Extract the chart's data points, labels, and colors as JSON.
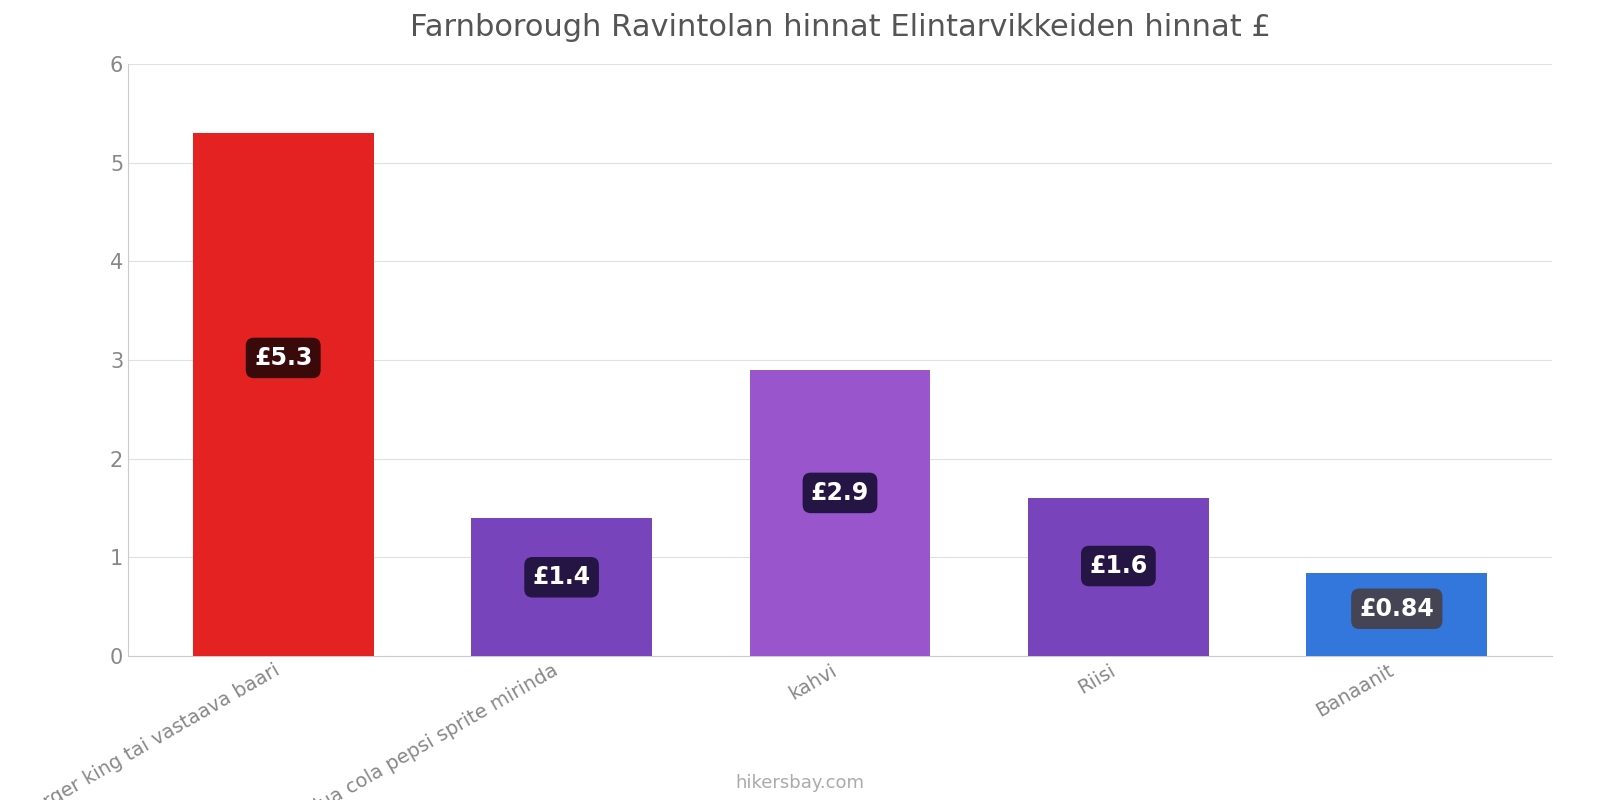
{
  "title": "Farnborough Ravintolan hinnat Elintarvikkeiden hinnat £",
  "categories": [
    "mac burger king tai vastaava baari",
    "Kävi koulua cola pepsi sprite mirinda",
    "kahvi",
    "Riisi",
    "Banaanit"
  ],
  "values": [
    5.3,
    1.4,
    2.9,
    1.6,
    0.84
  ],
  "bar_colors": [
    "#e52222",
    "#7744bb",
    "#9955cc",
    "#7744bb",
    "#3377dd"
  ],
  "label_texts": [
    "£5.3",
    "£1.4",
    "£2.9",
    "£1.6",
    "£0.84"
  ],
  "label_bg_colors": [
    "#3a0a0a",
    "#251545",
    "#251545",
    "#251545",
    "#444455"
  ],
  "ylim": [
    0,
    6
  ],
  "yticks": [
    0,
    1,
    2,
    3,
    4,
    5,
    6
  ],
  "footer_text": "hikersbay.com",
  "title_fontsize": 22,
  "label_fontsize": 17,
  "tick_fontsize": 15,
  "xtick_fontsize": 14,
  "footer_fontsize": 13,
  "background_color": "#ffffff"
}
